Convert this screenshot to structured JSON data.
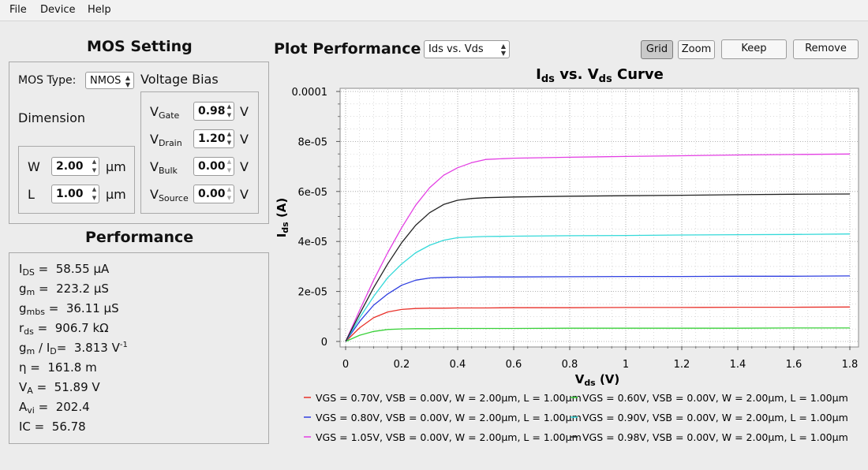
{
  "menu": [
    "File",
    "Device",
    "Help"
  ],
  "mos_setting": {
    "title": "MOS Setting",
    "mos_type_label": "MOS Type:",
    "mos_type_value": "NMOS",
    "voltage_bias_label": "Voltage Bias",
    "dimension_label": "Dimension",
    "w": {
      "label": "W",
      "value": "2.00",
      "unit": "μm"
    },
    "l": {
      "label": "L",
      "value": "1.00",
      "unit": "μm"
    },
    "vgate": {
      "label": "V",
      "sub": "Gate",
      "value": "0.98",
      "unit": "V"
    },
    "vdrain": {
      "label": "V",
      "sub": "Drain",
      "value": "1.20",
      "unit": "V"
    },
    "vbulk": {
      "label": "V",
      "sub": "Bulk",
      "value": "0.00",
      "unit": "V"
    },
    "vsource": {
      "label": "V",
      "sub": "Source",
      "value": "0.00",
      "unit": "V"
    }
  },
  "performance": {
    "title": "Performance",
    "ids": {
      "name": "I",
      "sub": "DS",
      "eq": " =  ",
      "value": "58.55 μA"
    },
    "gm": {
      "name": "g",
      "sub": "m",
      "eq": " =  ",
      "value": "223.2 μS"
    },
    "gmbs": {
      "name": "g",
      "sub": "mbs",
      "eq": " =  ",
      "value": "36.11 μS"
    },
    "rds": {
      "name": "r",
      "sub": "ds",
      "eq": " =  ",
      "value": "906.7 kΩ"
    },
    "gmid": {
      "name": "g",
      "sub": "m",
      "mid": " / I",
      "sub2": "D",
      "eq": "=  ",
      "value": "3.813 V",
      "sup": "-1"
    },
    "eta": {
      "name": "η",
      "eq": " =  ",
      "value": "161.8 m"
    },
    "va": {
      "name": "V",
      "sub": "A",
      "eq": " =  ",
      "value": "51.89 V"
    },
    "avi": {
      "name": "A",
      "sub": "vi",
      "eq": " =  ",
      "value": "202.4"
    },
    "ic": {
      "name": "IC",
      "eq": " =  ",
      "value": "56.78"
    }
  },
  "plot": {
    "title": "Plot Performance",
    "selector_value": "Ids vs. Vds",
    "grid_label": "Grid",
    "zoom_label": "Zoom",
    "keep_label": "Keep",
    "remove_label": "Remove"
  },
  "chart_data": {
    "type": "line",
    "title": "Ids vs. Vds Curve",
    "title_parts": {
      "a": "I",
      "a_sub": "ds",
      "b": " vs. V",
      "b_sub": "ds",
      "c": " Curve"
    },
    "xlabel": "Vds (V)",
    "ylabel": "Ids (A)",
    "xlim": [
      0,
      1.8
    ],
    "ylim": [
      0,
      0.0001
    ],
    "xticks": [
      "0",
      "0.2",
      "0.4",
      "0.6",
      "0.8",
      "1",
      "1.2",
      "1.4",
      "1.6",
      "1.8"
    ],
    "yticks": [
      "0",
      "2e-05",
      "4e-05",
      "6e-05",
      "8e-05",
      "0.0001"
    ],
    "grid": true,
    "legend_position": "bottom",
    "x": [
      0,
      0.05,
      0.1,
      0.15,
      0.2,
      0.25,
      0.3,
      0.35,
      0.4,
      0.45,
      0.5,
      0.6,
      0.8,
      1.0,
      1.2,
      1.4,
      1.6,
      1.8
    ],
    "series": [
      {
        "name": "VGS = 0.70V, VSB = 0.00V, W = 2.00μm, L = 1.00μm",
        "color": "#e8312a",
        "values": [
          0,
          5.5e-06,
          9.5e-06,
          1.18e-05,
          1.28e-05,
          1.32e-05,
          1.33e-05,
          1.33e-05,
          1.34e-05,
          1.34e-05,
          1.34e-05,
          1.35e-05,
          1.35e-05,
          1.36e-05,
          1.36e-05,
          1.37e-05,
          1.37e-05,
          1.38e-05
        ]
      },
      {
        "name": "VGS = 0.60V, VSB = 0.00V, W = 2.00μm, L = 1.00μm",
        "color": "#3ad13a",
        "values": [
          0,
          2.5e-06,
          4e-06,
          4.8e-06,
          5e-06,
          5.1e-06,
          5.1e-06,
          5.2e-06,
          5.2e-06,
          5.2e-06,
          5.2e-06,
          5.2e-06,
          5.3e-06,
          5.3e-06,
          5.3e-06,
          5.3e-06,
          5.4e-06,
          5.4e-06
        ]
      },
      {
        "name": "VGS = 0.80V, VSB = 0.00V, W = 2.00μm, L = 1.00μm",
        "color": "#2f3fe0",
        "values": [
          0,
          8e-06,
          1.45e-05,
          1.9e-05,
          2.25e-05,
          2.45e-05,
          2.54e-05,
          2.56e-05,
          2.57e-05,
          2.57e-05,
          2.58e-05,
          2.58e-05,
          2.59e-05,
          2.6e-05,
          2.6e-05,
          2.61e-05,
          2.61e-05,
          2.62e-05
        ]
      },
      {
        "name": "VGS = 0.90V, VSB = 0.00V, W = 2.00μm, L = 1.00μm",
        "color": "#35d9d9",
        "values": [
          0,
          9.5e-06,
          1.8e-05,
          2.55e-05,
          3.1e-05,
          3.55e-05,
          3.85e-05,
          4.05e-05,
          4.15e-05,
          4.18e-05,
          4.2e-05,
          4.21e-05,
          4.23e-05,
          4.24e-05,
          4.26e-05,
          4.27e-05,
          4.28e-05,
          4.3e-05
        ]
      },
      {
        "name": "VGS = 1.05V, VSB = 0.00V, W = 2.00μm, L = 1.00μm",
        "color": "#e33fe3",
        "values": [
          0,
          1.25e-05,
          2.45e-05,
          3.55e-05,
          4.55e-05,
          5.45e-05,
          6.15e-05,
          6.65e-05,
          6.95e-05,
          7.15e-05,
          7.28e-05,
          7.33e-05,
          7.37e-05,
          7.4e-05,
          7.43e-05,
          7.46e-05,
          7.48e-05,
          7.5e-05
        ]
      },
      {
        "name": "VGS = 0.98V, VSB = 0.00V, W = 2.00μm, L = 1.00μm",
        "color": "#222222",
        "values": [
          0,
          1.1e-05,
          2.15e-05,
          3.1e-05,
          3.95e-05,
          4.65e-05,
          5.15e-05,
          5.48e-05,
          5.65e-05,
          5.72e-05,
          5.75e-05,
          5.78e-05,
          5.81e-05,
          5.83e-05,
          5.85e-05,
          5.87e-05,
          5.89e-05,
          5.9e-05
        ]
      }
    ]
  }
}
